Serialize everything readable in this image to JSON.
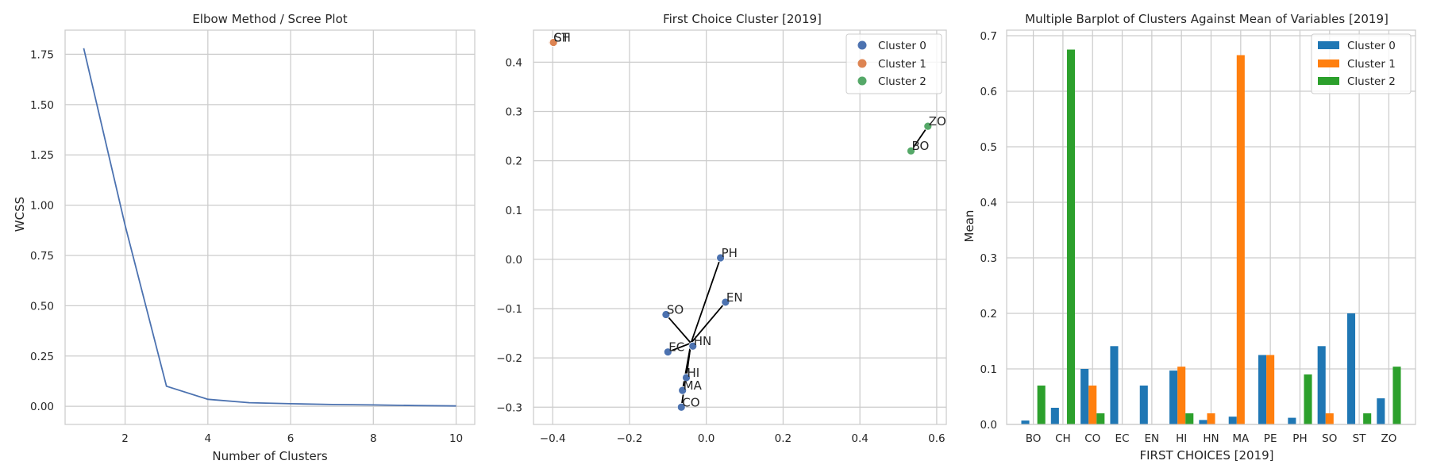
{
  "chart_data": [
    {
      "type": "line",
      "title": "Elbow Method / Scree Plot",
      "xlabel": "Number of Clusters",
      "ylabel": "WCSS",
      "xlim": [
        0.55,
        10.45
      ],
      "ylim": [
        -0.09,
        1.87
      ],
      "x_ticks": [
        2,
        4,
        6,
        8,
        10
      ],
      "y_ticks": [
        0.0,
        0.25,
        0.5,
        0.75,
        1.0,
        1.25,
        1.5,
        1.75
      ],
      "y_tick_labels": [
        "0.00",
        "0.25",
        "0.50",
        "0.75",
        "1.00",
        "1.25",
        "1.50",
        "1.75"
      ],
      "grid": true,
      "color": "#4c72b0",
      "series": [
        {
          "x": [
            1,
            2,
            3,
            4,
            5,
            6,
            7,
            8,
            9,
            10
          ],
          "values": [
            1.78,
            0.9,
            0.1,
            0.035,
            0.018,
            0.013,
            0.009,
            0.007,
            0.004,
            0.002
          ]
        }
      ]
    },
    {
      "type": "scatter",
      "title": "First Choice Cluster [2019]",
      "xlabel": "",
      "ylabel": "",
      "xlim": [
        -0.45,
        0.625
      ],
      "ylim": [
        -0.335,
        0.465
      ],
      "x_ticks": [
        -0.4,
        -0.2,
        0.0,
        0.2,
        0.4,
        0.6
      ],
      "x_tick_labels": [
        "−0.4",
        "−0.2",
        "0.0",
        "0.2",
        "0.4",
        "0.6"
      ],
      "y_ticks": [
        -0.3,
        -0.2,
        -0.1,
        0.0,
        0.1,
        0.2,
        0.3,
        0.4
      ],
      "y_tick_labels": [
        "−0.3",
        "−0.2",
        "−0.1",
        "0.0",
        "0.1",
        "0.2",
        "0.3",
        "0.4"
      ],
      "grid": true,
      "legend_position": "top-right",
      "clusters": [
        {
          "name": "Cluster 0",
          "color": "#4c72b0",
          "centroid": [
            -0.04,
            -0.17
          ],
          "points": [
            {
              "label": "PH",
              "x": 0.037,
              "y": 0.003
            },
            {
              "label": "EN",
              "x": 0.05,
              "y": -0.087
            },
            {
              "label": "SO",
              "x": -0.105,
              "y": -0.112
            },
            {
              "label": "EC",
              "x": -0.1,
              "y": -0.188
            },
            {
              "label": "HN",
              "x": -0.035,
              "y": -0.176
            },
            {
              "label": "HI",
              "x": -0.052,
              "y": -0.24
            },
            {
              "label": "MA",
              "x": -0.062,
              "y": -0.266
            },
            {
              "label": "CO",
              "x": -0.065,
              "y": -0.3
            }
          ]
        },
        {
          "name": "Cluster 1",
          "color": "#dd8452",
          "centroid": [
            -0.4,
            0.44
          ],
          "points": [
            {
              "label": "CH",
              "x": -0.4,
              "y": 0.44
            },
            {
              "label": "ST",
              "x": -0.398,
              "y": 0.44
            }
          ]
        },
        {
          "name": "Cluster 2",
          "color": "#55a868",
          "centroid": [
            0.555,
            0.245
          ],
          "points": [
            {
              "label": "ZO",
              "x": 0.577,
              "y": 0.27
            },
            {
              "label": "BO",
              "x": 0.533,
              "y": 0.22
            }
          ]
        }
      ]
    },
    {
      "type": "bar",
      "title": "Multiple Barplot of Clusters Against Mean of Variables [2019]",
      "xlabel": "FIRST CHOICES [2019]",
      "ylabel": "Mean",
      "ylim": [
        0,
        0.71
      ],
      "y_ticks": [
        0.0,
        0.1,
        0.2,
        0.3,
        0.4,
        0.5,
        0.6,
        0.7
      ],
      "y_tick_labels": [
        "0.0",
        "0.1",
        "0.2",
        "0.3",
        "0.4",
        "0.5",
        "0.6",
        "0.7"
      ],
      "grid": true,
      "legend_position": "top-right",
      "categories": [
        "BO",
        "CH",
        "CO",
        "EC",
        "EN",
        "HI",
        "HN",
        "MA",
        "PE",
        "PH",
        "SO",
        "ST",
        "ZO"
      ],
      "series": [
        {
          "name": "Cluster 0",
          "color": "#1f77b4",
          "values": [
            0.007,
            0.03,
            0.1,
            0.141,
            0.07,
            0.097,
            0.008,
            0.014,
            0.125,
            0.012,
            0.141,
            0.2,
            0.047
          ]
        },
        {
          "name": "Cluster 1",
          "color": "#ff7f0e",
          "values": [
            0,
            0,
            0.07,
            0,
            0,
            0.104,
            0.02,
            0.665,
            0.125,
            0,
            0.02,
            0,
            0
          ]
        },
        {
          "name": "Cluster 2",
          "color": "#2ca02c",
          "values": [
            0.07,
            0.675,
            0.02,
            0,
            0,
            0.02,
            0,
            0,
            0,
            0.09,
            0,
            0.02,
            0.104
          ]
        }
      ]
    }
  ]
}
